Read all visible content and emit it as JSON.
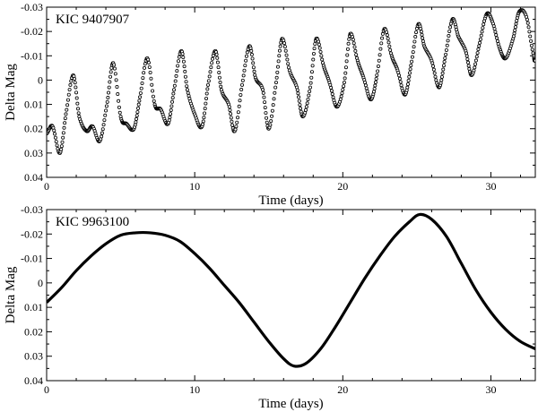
{
  "chart_data": [
    {
      "type": "scatter",
      "annotation": "KIC 9407907",
      "xlabel": "Time (days)",
      "ylabel": "Delta Mag",
      "xlim": [
        0,
        33
      ],
      "ylim": [
        0.04,
        -0.03
      ],
      "y_inverted": true,
      "xticks": [
        0,
        10,
        20,
        30
      ],
      "xtick_labels": [
        "0",
        "10",
        "20",
        "30"
      ],
      "yticks": [
        -0.03,
        -0.02,
        -0.01,
        0,
        0.01,
        0.02,
        0.03,
        0.04
      ],
      "ytick_labels": [
        "-0.03",
        "-0.02",
        "-0.01",
        "0",
        "0.01",
        "0.02",
        "0.03",
        "0.04"
      ],
      "marker": "open-circle",
      "grid": false,
      "series": [
        {
          "x": [
            0.0,
            0.4,
            0.9,
            1.3,
            1.8,
            2.2,
            2.7,
            3.1,
            3.6,
            4.1,
            4.5,
            5.0,
            5.4,
            5.9,
            6.3,
            6.8,
            7.3,
            7.7,
            8.2,
            8.6,
            9.1,
            9.5,
            10.0,
            10.5,
            10.9,
            11.4,
            11.8,
            12.3,
            12.7,
            13.2,
            13.7,
            14.1,
            14.6,
            15.0,
            15.5,
            15.9,
            16.4,
            16.9,
            17.3,
            17.8,
            18.2,
            18.7,
            19.1,
            19.6,
            20.1,
            20.5,
            21.0,
            21.4,
            21.9,
            22.3,
            22.8,
            23.3,
            23.7,
            24.2,
            24.6,
            25.1,
            25.5,
            26.0,
            26.5,
            26.9,
            27.4,
            27.8,
            28.3,
            28.7,
            29.2,
            29.7,
            30.1,
            30.6,
            31.0,
            31.5,
            31.9,
            32.4,
            32.9,
            33.0
          ],
          "y": [
            0.022,
            0.019,
            0.03,
            0.014,
            -0.002,
            0.015,
            0.021,
            0.019,
            0.025,
            0.009,
            -0.007,
            0.015,
            0.018,
            0.02,
            0.007,
            -0.009,
            0.01,
            0.012,
            0.018,
            0.004,
            -0.012,
            0.004,
            0.014,
            0.019,
            0.002,
            -0.012,
            0.004,
            0.01,
            0.021,
            0.002,
            -0.014,
            -0.001,
            0.004,
            0.02,
            0.001,
            -0.017,
            -0.004,
            0.003,
            0.015,
            0.003,
            -0.017,
            -0.006,
            0.001,
            0.011,
            0.001,
            -0.019,
            -0.008,
            -0.001,
            0.008,
            -0.002,
            -0.021,
            -0.01,
            -0.004,
            0.006,
            -0.006,
            -0.023,
            -0.014,
            -0.008,
            0.003,
            -0.009,
            -0.025,
            -0.018,
            -0.012,
            -0.002,
            -0.014,
            -0.027,
            -0.024,
            -0.013,
            -0.009,
            -0.017,
            -0.028,
            -0.026,
            -0.01,
            -0.008
          ]
        }
      ]
    },
    {
      "type": "line",
      "annotation": "KIC 9963100",
      "xlabel": "Time (days)",
      "ylabel": "Delta Mag",
      "xlim": [
        0,
        33
      ],
      "ylim": [
        0.04,
        -0.03
      ],
      "y_inverted": true,
      "xticks": [
        0,
        10,
        20,
        30
      ],
      "xtick_labels": [
        "0",
        "10",
        "20",
        "30"
      ],
      "yticks": [
        -0.03,
        -0.02,
        -0.01,
        0,
        0.01,
        0.02,
        0.03,
        0.04
      ],
      "ytick_labels": [
        "-0.03",
        "-0.02",
        "-0.01",
        "0",
        "0.01",
        "0.02",
        "0.03",
        "0.04"
      ],
      "grid": false,
      "series": [
        {
          "x": [
            0,
            1,
            2,
            3,
            4,
            5,
            6,
            7,
            8,
            9,
            10,
            11,
            12,
            13,
            14,
            15,
            16,
            16.7,
            17.5,
            18.5,
            19.5,
            20.5,
            21.5,
            22.5,
            23.5,
            24.5,
            25.2,
            26,
            27,
            28,
            29,
            30,
            31,
            32,
            33
          ],
          "y": [
            0.008,
            0.002,
            -0.005,
            -0.011,
            -0.016,
            -0.0195,
            -0.0205,
            -0.0205,
            -0.0195,
            -0.017,
            -0.012,
            -0.006,
            0.001,
            0.008,
            0.016,
            0.024,
            0.031,
            0.034,
            0.033,
            0.027,
            0.018,
            0.008,
            -0.002,
            -0.011,
            -0.019,
            -0.025,
            -0.028,
            -0.026,
            -0.019,
            -0.008,
            0.003,
            0.012,
            0.019,
            0.024,
            0.027
          ]
        }
      ]
    }
  ]
}
